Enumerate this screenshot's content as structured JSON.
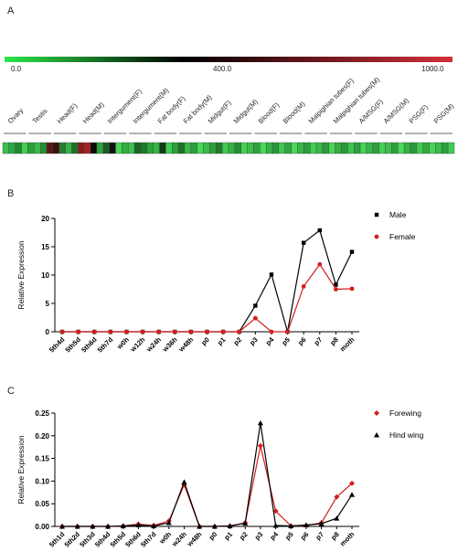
{
  "panel_a": {
    "label": "A",
    "scale": {
      "min": "0.0",
      "mid": "400.0",
      "max": "1000.0",
      "colors": [
        "#2ee64a",
        "#000000",
        "#d42f3a"
      ]
    },
    "tissues": [
      "Ovary",
      "Testis",
      "Head(F)",
      "Head(M)",
      "Intergument(F)",
      "Intergument(M)",
      "Fat body(F)",
      "Fat body(M)",
      "Midgut(F)",
      "Midgut(M)",
      "Blood(F)",
      "Blood(M)",
      "Malpighian tubes(F)",
      "Malpighian tubes(M)",
      "A/MSG(F)",
      "A/MSG(M)",
      "PSG(F)",
      "PSG(M)"
    ],
    "heat_colors": [
      "#38c24b",
      "#2da83f",
      "#1f8a30",
      "#40d050",
      "#2b9e3c",
      "#3ab848",
      "#248f35",
      "#5a1818",
      "#3c1010",
      "#2a7a2f",
      "#36b345",
      "#1e6f28",
      "#8a1c1c",
      "#a82020",
      "#0a0a0a",
      "#2ca33d",
      "#1a5c22",
      "#101010",
      "#45d453",
      "#2fb040",
      "#3bc24c",
      "#186622",
      "#1c7b2a",
      "#2aa53b",
      "#35b546",
      "#0e3a14",
      "#40cc50",
      "#28a03a",
      "#1b7329",
      "#36b847",
      "#2d9e3e",
      "#47d856",
      "#38bb48",
      "#2c9f3c",
      "#1e7d2d",
      "#3ecb4e",
      "#30b142",
      "#258e35",
      "#43d352",
      "#39bf4a",
      "#2fa13f",
      "#48da58",
      "#33b344",
      "#27963a",
      "#3fc84f",
      "#2ea640",
      "#4ad95a",
      "#35b646",
      "#2a9d3c",
      "#41cf51",
      "#37ba48",
      "#2c9b3d",
      "#46d756",
      "#31ad42",
      "#299a3b",
      "#3dc54d",
      "#2ba23d",
      "#44d554",
      "#36b747",
      "#2e9f3f",
      "#42d152",
      "#3ac04a",
      "#2da03e",
      "#49d959",
      "#34b245",
      "#289a3a",
      "#3fca4f",
      "#30ab41",
      "#45d555",
      "#38bd49",
      "#2ba13d",
      "#40cd50"
    ]
  },
  "chart_data": [
    {
      "type": "line",
      "panel": "B",
      "ylabel": "Relative Expression",
      "ylim": [
        0,
        20
      ],
      "yticks": [
        0,
        5,
        10,
        15,
        20
      ],
      "categories": [
        "5th4d",
        "5th5d",
        "5th6d",
        "5th7d",
        "w0h",
        "w12h",
        "w24h",
        "w36h",
        "w48h",
        "p0",
        "p1",
        "p2",
        "p3",
        "p4",
        "p5",
        "p6",
        "p7",
        "p8",
        "moth"
      ],
      "series": [
        {
          "name": "Male",
          "color": "#000000",
          "marker": "square",
          "values": [
            0,
            0,
            0,
            0,
            0,
            0,
            0,
            0,
            0,
            0,
            0,
            0,
            4.6,
            10.1,
            0,
            15.7,
            17.9,
            8.3,
            14.1
          ]
        },
        {
          "name": "Female",
          "color": "#d02020",
          "marker": "circle",
          "values": [
            0,
            0,
            0,
            0,
            0,
            0,
            0,
            0,
            0,
            0,
            0,
            0,
            2.4,
            0,
            0,
            8.0,
            11.9,
            7.5,
            7.6
          ]
        }
      ]
    },
    {
      "type": "line",
      "panel": "C",
      "ylabel": "Relative Expression",
      "ylim": [
        0,
        0.25
      ],
      "yticks": [
        "0.00",
        "0.05",
        "0.10",
        "0.15",
        "0.20",
        "0.25"
      ],
      "categories": [
        "5th1d",
        "5th2d",
        "5th3d",
        "5th4d",
        "5th5d",
        "5th6d",
        "5th7d",
        "w0h",
        "w24h",
        "w48h",
        "p0",
        "p1",
        "p2",
        "p3",
        "p4",
        "p5",
        "p6",
        "p7",
        "p8",
        "moth"
      ],
      "series": [
        {
          "name": "Forewing",
          "color": "#d02020",
          "marker": "diamond",
          "values": [
            0,
            0,
            0,
            0,
            0.001,
            0.005,
            0.002,
            0.012,
            0.092,
            0,
            0,
            0.001,
            0.008,
            0.178,
            0.034,
            0.001,
            0.002,
            0.008,
            0.065,
            0.095
          ]
        },
        {
          "name": "Hind wing",
          "color": "#000000",
          "marker": "triangle",
          "values": [
            0,
            0,
            0,
            0,
            0.001,
            0.003,
            0.001,
            0.008,
            0.098,
            0,
            0,
            0.001,
            0.007,
            0.228,
            0.002,
            0.001,
            0.003,
            0.006,
            0.018,
            0.07
          ]
        }
      ]
    }
  ],
  "panel_b": {
    "label": "B"
  },
  "panel_c": {
    "label": "C"
  }
}
